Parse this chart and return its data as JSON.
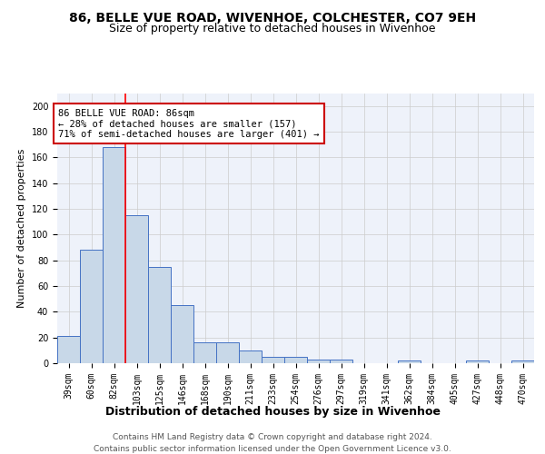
{
  "title1": "86, BELLE VUE ROAD, WIVENHOE, COLCHESTER, CO7 9EH",
  "title2": "Size of property relative to detached houses in Wivenhoe",
  "xlabel": "Distribution of detached houses by size in Wivenhoe",
  "ylabel": "Number of detached properties",
  "categories": [
    "39sqm",
    "60sqm",
    "82sqm",
    "103sqm",
    "125sqm",
    "146sqm",
    "168sqm",
    "190sqm",
    "211sqm",
    "233sqm",
    "254sqm",
    "276sqm",
    "297sqm",
    "319sqm",
    "341sqm",
    "362sqm",
    "384sqm",
    "405sqm",
    "427sqm",
    "448sqm",
    "470sqm"
  ],
  "values": [
    21,
    88,
    168,
    115,
    75,
    45,
    16,
    16,
    10,
    5,
    5,
    3,
    3,
    0,
    0,
    2,
    0,
    0,
    2,
    0,
    2
  ],
  "bar_color": "#c8d8e8",
  "bar_edge_color": "#4472c4",
  "grid_color": "#cccccc",
  "background_color": "#eef2fa",
  "red_line_index": 2,
  "annotation_text": "86 BELLE VUE ROAD: 86sqm\n← 28% of detached houses are smaller (157)\n71% of semi-detached houses are larger (401) →",
  "annotation_box_color": "#ffffff",
  "annotation_box_edge": "#cc0000",
  "footer_text": "Contains HM Land Registry data © Crown copyright and database right 2024.\nContains public sector information licensed under the Open Government Licence v3.0.",
  "title1_fontsize": 10,
  "title2_fontsize": 9,
  "ylabel_fontsize": 8,
  "xlabel_fontsize": 9,
  "tick_fontsize": 7,
  "footer_fontsize": 6.5,
  "ylim": [
    0,
    210
  ],
  "yticks": [
    0,
    20,
    40,
    60,
    80,
    100,
    120,
    140,
    160,
    180,
    200
  ]
}
